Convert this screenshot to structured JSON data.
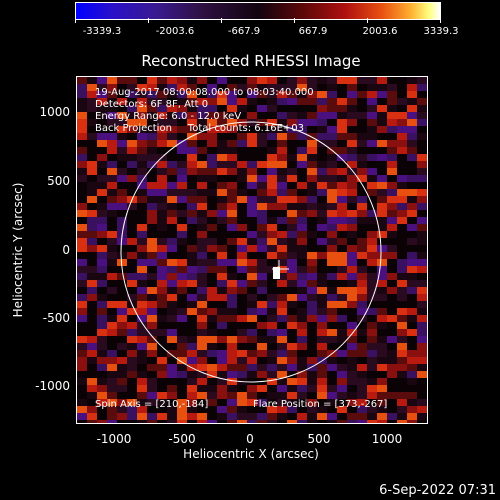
{
  "colorbar": {
    "ticks": [
      "-3339.3",
      "-2003.6",
      "-667.9",
      "667.9",
      "2003.6",
      "3339.3"
    ]
  },
  "title": "Reconstructed RHESSI Image",
  "info": {
    "time_range": "19-Aug-2017 08:00:08.000 to 08:03:40.000",
    "detectors": "Detectors: 6F 8F, Att 0",
    "energy": "Energy Range: 6.0 - 12.0 keV",
    "method": "Back Projection     Total counts: 6.16E+03",
    "spin_axis": "Spin Axis = [210,-184]",
    "flare_position": "Flare Position = [373,-267]"
  },
  "axes": {
    "xlabel": "Heliocentric X (arcsec)",
    "ylabel": "Heliocentric Y (arcsec)",
    "xticks": [
      "-1000",
      "-500",
      "0",
      "500",
      "1000"
    ],
    "yticks": [
      "1000",
      "500",
      "0",
      "-500",
      "-1000"
    ]
  },
  "timestamp": "6-Sep-2022 07:31"
}
